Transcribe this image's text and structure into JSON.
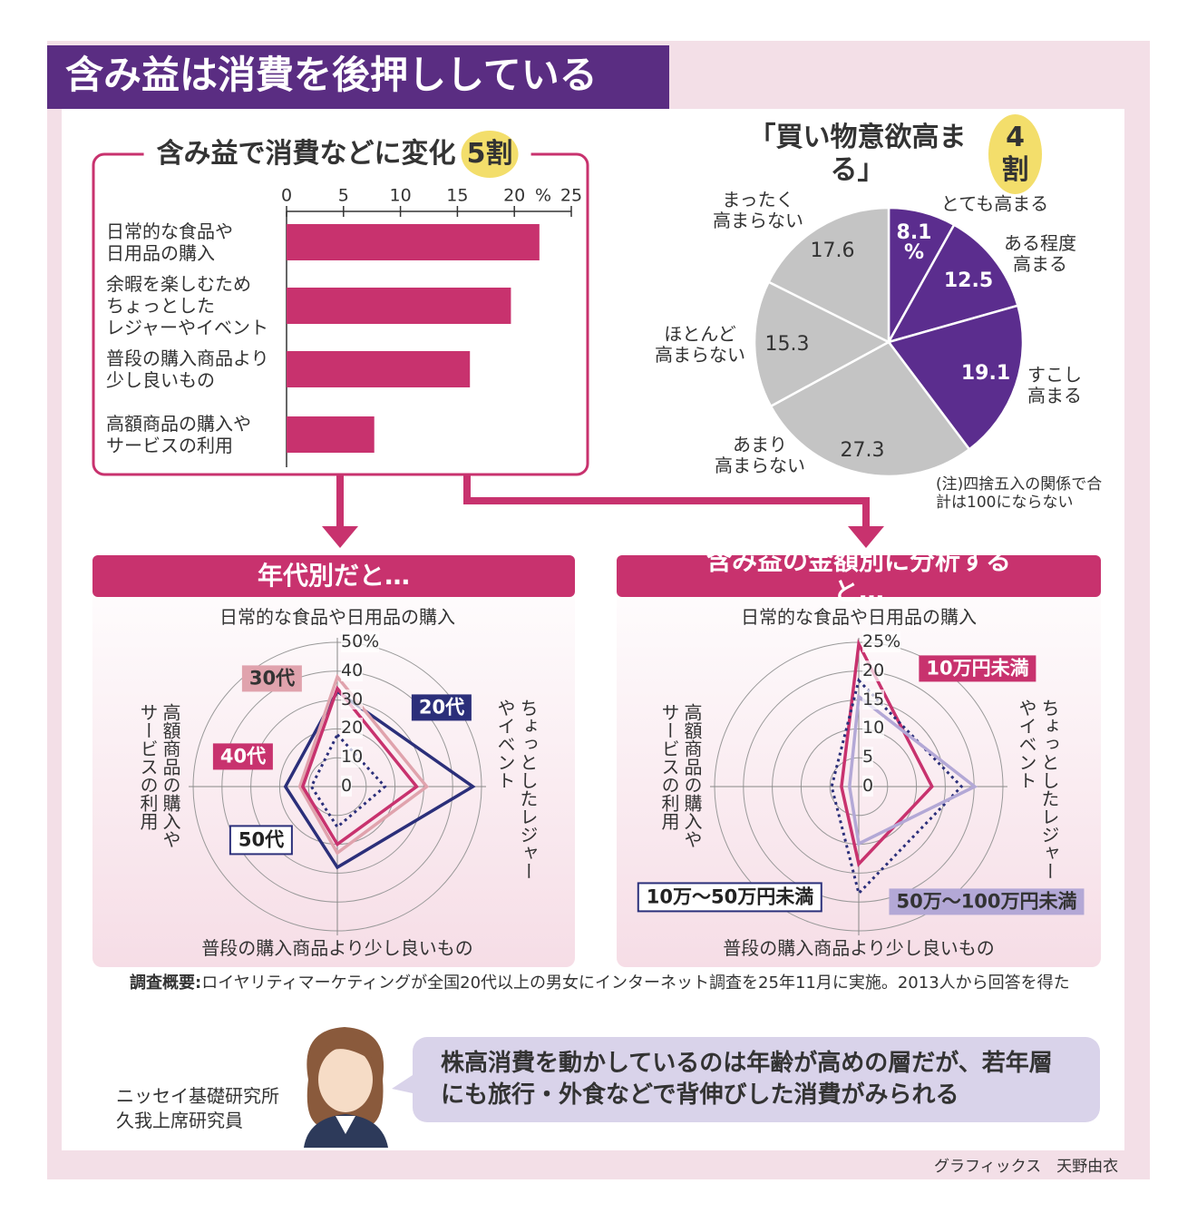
{
  "title": "含み益は消費を後押ししている",
  "chart_data": [
    {
      "type": "bar",
      "title": "含み益で消費などに変化",
      "badge": "5割",
      "categories": [
        "日常的な食品や\n日用品の購入",
        "余暇を楽しむため\nちょっとした\nレジャーやイベント",
        "普段の購入商品より\n少し良いもの",
        "高額商品の購入や\nサービスの利用"
      ],
      "values": [
        22.2,
        19.7,
        16.1,
        7.7
      ],
      "color": "#c8326e",
      "xlim": [
        0,
        25
      ],
      "xticks": [
        0,
        5,
        10,
        15,
        20,
        25
      ],
      "unit": "%"
    },
    {
      "type": "pie",
      "title": "「買い物意欲高まる」",
      "badge": "4割",
      "categories": [
        "とても高まる",
        "ある程度\n高まる",
        "すこし\n高まる",
        "あまり\n高まらない",
        "ほとんど\n高まらない",
        "まったく\n高まらない"
      ],
      "values": [
        8.1,
        12.5,
        19.1,
        27.3,
        15.3,
        17.6
      ],
      "value_labels": [
        "8.1\n%",
        "12.5",
        "19.1",
        "27.3",
        "15.3",
        "17.6"
      ],
      "colors": [
        "#5b2d8e",
        "#5b2d8e",
        "#5b2d8e",
        "#c4c4c4",
        "#c4c4c4",
        "#c4c4c4"
      ],
      "note": "(注)四捨五入の関係で合\n計は100にならない"
    },
    {
      "type": "radar",
      "title": "年代別だと…",
      "axes": [
        "日常的な食品や日用品の購入",
        "ちょっとしたレジャー\nやイベント",
        "普段の購入商品より少し良いもの",
        "高額商品の購入や\nサービスの利用"
      ],
      "rlim": [
        0,
        50
      ],
      "rticks": [
        0,
        10,
        20,
        30,
        40,
        {
          "value": 50,
          "label": "50%"
        }
      ],
      "series": [
        {
          "name": "20代",
          "color": "#2b2f7a",
          "values": [
            33,
            47,
            28,
            18
          ]
        },
        {
          "name": "30代",
          "color": "#e0a3ad",
          "values": [
            38,
            31,
            23,
            13
          ]
        },
        {
          "name": "40代",
          "color": "#c8326e",
          "values": [
            34,
            27.5,
            20,
            12
          ]
        },
        {
          "name": "50代",
          "color": "#2b2f7a",
          "style": "dotted",
          "values": [
            18,
            16.5,
            14,
            9
          ]
        }
      ]
    },
    {
      "type": "radar",
      "title": "含み益の金額別に分析すると…",
      "axes": [
        "日常的な食品や日用品の購入",
        "ちょっとしたレジャー\nやイベント",
        "普段の購入商品より少し良いもの",
        "高額商品の購入や\nサービスの利用"
      ],
      "rlim": [
        0,
        25
      ],
      "rticks": [
        0,
        5,
        10,
        15,
        20,
        {
          "value": 25,
          "label": "25%"
        }
      ],
      "series": [
        {
          "name": "10万円未満",
          "color": "#c8326e",
          "values": [
            24.7,
            12.7,
            13.4,
            3
          ]
        },
        {
          "name": "10万～50万円未満",
          "color": "#2b2f7a",
          "style": "dotted",
          "values": [
            18.4,
            17.8,
            18.5,
            4.7
          ]
        },
        {
          "name": "50万～100万円未満",
          "color": "#b3a8d6",
          "values": [
            15.6,
            20.1,
            9.9,
            1.6
          ]
        }
      ]
    }
  ],
  "survey_note": {
    "label": "調査概要:",
    "text": "ロイヤリティマーケティングが全国20代以上の男女にインターネット調査を25年11月に実施。2013人から回答を得た"
  },
  "commentator": "ニッセイ基礎研究所\n久我上席研究員",
  "comment": "株高消費を動かしているのは年齢が高めの層だが、若年層\nにも旅行・外食などで背伸びした消費がみられる",
  "credit": "グラフィックス　天野由衣"
}
